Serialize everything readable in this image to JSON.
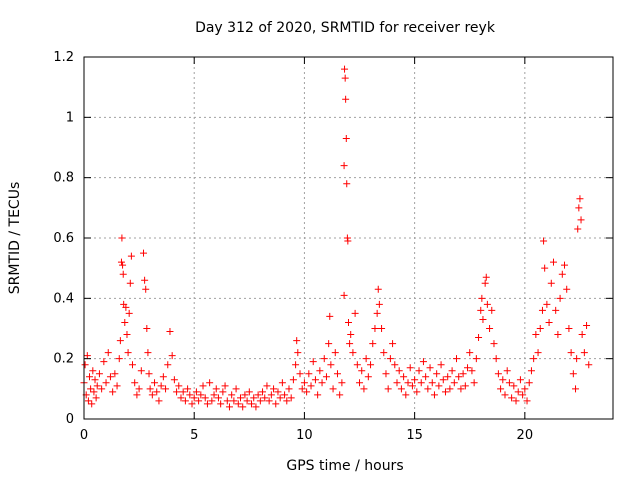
{
  "chart_data": {
    "type": "scatter",
    "title": "Day 312 of 2020, SRMTID for receiver reyk",
    "xlabel": "GPS time / hours",
    "ylabel": "SRMTID / TECUs",
    "xlim": [
      0,
      24
    ],
    "ylim": [
      0,
      1.2
    ],
    "xticks": [
      0,
      5,
      10,
      15,
      20
    ],
    "xtick_labels": [
      "0",
      "5",
      "10",
      "15",
      "20"
    ],
    "yticks": [
      0,
      0.2,
      0.4,
      0.6,
      0.8,
      1.0,
      1.2
    ],
    "ytick_labels": [
      "0",
      "0.2",
      "0.4",
      "0.6",
      "0.8",
      "1",
      "1.2"
    ],
    "grid": true,
    "marker": "+",
    "color": "#ff0000",
    "series": [
      {
        "name": "SRMTID",
        "points": [
          [
            0.0,
            0.12
          ],
          [
            0.05,
            0.18
          ],
          [
            0.1,
            0.08
          ],
          [
            0.15,
            0.21
          ],
          [
            0.2,
            0.06
          ],
          [
            0.25,
            0.14
          ],
          [
            0.3,
            0.1
          ],
          [
            0.35,
            0.05
          ],
          [
            0.4,
            0.16
          ],
          [
            0.45,
            0.09
          ],
          [
            0.5,
            0.13
          ],
          [
            0.55,
            0.07
          ],
          [
            0.6,
            0.11
          ],
          [
            0.7,
            0.15
          ],
          [
            0.8,
            0.1
          ],
          [
            0.9,
            0.19
          ],
          [
            1.0,
            0.12
          ],
          [
            1.1,
            0.22
          ],
          [
            1.2,
            0.14
          ],
          [
            1.3,
            0.09
          ],
          [
            1.4,
            0.15
          ],
          [
            1.5,
            0.11
          ],
          [
            1.6,
            0.2
          ],
          [
            1.65,
            0.26
          ],
          [
            1.7,
            0.52
          ],
          [
            1.72,
            0.6
          ],
          [
            1.75,
            0.51
          ],
          [
            1.78,
            0.48
          ],
          [
            1.8,
            0.38
          ],
          [
            1.85,
            0.32
          ],
          [
            1.9,
            0.37
          ],
          [
            1.95,
            0.28
          ],
          [
            2.0,
            0.22
          ],
          [
            2.05,
            0.35
          ],
          [
            2.1,
            0.45
          ],
          [
            2.15,
            0.54
          ],
          [
            2.2,
            0.18
          ],
          [
            2.3,
            0.12
          ],
          [
            2.4,
            0.08
          ],
          [
            2.5,
            0.1
          ],
          [
            2.6,
            0.16
          ],
          [
            2.7,
            0.55
          ],
          [
            2.75,
            0.46
          ],
          [
            2.8,
            0.43
          ],
          [
            2.85,
            0.3
          ],
          [
            2.9,
            0.22
          ],
          [
            2.95,
            0.15
          ],
          [
            3.0,
            0.1
          ],
          [
            3.1,
            0.08
          ],
          [
            3.2,
            0.12
          ],
          [
            3.3,
            0.09
          ],
          [
            3.4,
            0.06
          ],
          [
            3.5,
            0.11
          ],
          [
            3.6,
            0.14
          ],
          [
            3.7,
            0.1
          ],
          [
            3.8,
            0.18
          ],
          [
            3.9,
            0.29
          ],
          [
            4.0,
            0.21
          ],
          [
            4.1,
            0.13
          ],
          [
            4.2,
            0.09
          ],
          [
            4.3,
            0.11
          ],
          [
            4.4,
            0.07
          ],
          [
            4.5,
            0.09
          ],
          [
            4.6,
            0.06
          ],
          [
            4.7,
            0.1
          ],
          [
            4.8,
            0.08
          ],
          [
            4.9,
            0.05
          ],
          [
            5.0,
            0.07
          ],
          [
            5.1,
            0.09
          ],
          [
            5.2,
            0.06
          ],
          [
            5.3,
            0.08
          ],
          [
            5.4,
            0.11
          ],
          [
            5.5,
            0.07
          ],
          [
            5.6,
            0.05
          ],
          [
            5.7,
            0.12
          ],
          [
            5.8,
            0.06
          ],
          [
            5.9,
            0.08
          ],
          [
            6.0,
            0.1
          ],
          [
            6.1,
            0.07
          ],
          [
            6.2,
            0.05
          ],
          [
            6.3,
            0.09
          ],
          [
            6.4,
            0.11
          ],
          [
            6.5,
            0.06
          ],
          [
            6.6,
            0.04
          ],
          [
            6.7,
            0.08
          ],
          [
            6.8,
            0.06
          ],
          [
            6.9,
            0.1
          ],
          [
            7.0,
            0.05
          ],
          [
            7.1,
            0.07
          ],
          [
            7.2,
            0.04
          ],
          [
            7.3,
            0.08
          ],
          [
            7.4,
            0.06
          ],
          [
            7.5,
            0.09
          ],
          [
            7.6,
            0.05
          ],
          [
            7.7,
            0.07
          ],
          [
            7.8,
            0.04
          ],
          [
            7.9,
            0.08
          ],
          [
            8.0,
            0.06
          ],
          [
            8.1,
            0.09
          ],
          [
            8.2,
            0.07
          ],
          [
            8.3,
            0.11
          ],
          [
            8.4,
            0.06
          ],
          [
            8.5,
            0.08
          ],
          [
            8.6,
            0.1
          ],
          [
            8.7,
            0.05
          ],
          [
            8.8,
            0.09
          ],
          [
            8.9,
            0.07
          ],
          [
            9.0,
            0.12
          ],
          [
            9.1,
            0.08
          ],
          [
            9.2,
            0.06
          ],
          [
            9.3,
            0.1
          ],
          [
            9.4,
            0.07
          ],
          [
            9.5,
            0.13
          ],
          [
            9.6,
            0.18
          ],
          [
            9.65,
            0.26
          ],
          [
            9.7,
            0.22
          ],
          [
            9.8,
            0.15
          ],
          [
            9.9,
            0.1
          ],
          [
            10.0,
            0.12
          ],
          [
            10.1,
            0.09
          ],
          [
            10.2,
            0.15
          ],
          [
            10.3,
            0.11
          ],
          [
            10.4,
            0.19
          ],
          [
            10.5,
            0.13
          ],
          [
            10.6,
            0.08
          ],
          [
            10.7,
            0.16
          ],
          [
            10.8,
            0.12
          ],
          [
            10.9,
            0.2
          ],
          [
            11.0,
            0.14
          ],
          [
            11.1,
            0.25
          ],
          [
            11.15,
            0.34
          ],
          [
            11.2,
            0.18
          ],
          [
            11.3,
            0.1
          ],
          [
            11.4,
            0.22
          ],
          [
            11.5,
            0.15
          ],
          [
            11.6,
            0.08
          ],
          [
            11.7,
            0.12
          ],
          [
            11.8,
            0.84
          ],
          [
            11.82,
            1.16
          ],
          [
            11.85,
            1.13
          ],
          [
            11.87,
            1.06
          ],
          [
            11.9,
            0.93
          ],
          [
            11.92,
            0.78
          ],
          [
            11.95,
            0.6
          ],
          [
            11.97,
            0.59
          ],
          [
            11.8,
            0.41
          ],
          [
            12.0,
            0.32
          ],
          [
            12.05,
            0.25
          ],
          [
            12.1,
            0.28
          ],
          [
            12.2,
            0.22
          ],
          [
            12.3,
            0.35
          ],
          [
            12.4,
            0.18
          ],
          [
            12.5,
            0.12
          ],
          [
            12.6,
            0.16
          ],
          [
            12.7,
            0.1
          ],
          [
            12.8,
            0.2
          ],
          [
            12.9,
            0.14
          ],
          [
            13.0,
            0.18
          ],
          [
            13.1,
            0.25
          ],
          [
            13.2,
            0.3
          ],
          [
            13.3,
            0.35
          ],
          [
            13.35,
            0.43
          ],
          [
            13.4,
            0.38
          ],
          [
            13.5,
            0.3
          ],
          [
            13.6,
            0.22
          ],
          [
            13.7,
            0.15
          ],
          [
            13.8,
            0.1
          ],
          [
            13.9,
            0.2
          ],
          [
            14.0,
            0.25
          ],
          [
            14.1,
            0.18
          ],
          [
            14.2,
            0.12
          ],
          [
            14.3,
            0.16
          ],
          [
            14.4,
            0.1
          ],
          [
            14.5,
            0.14
          ],
          [
            14.6,
            0.08
          ],
          [
            14.7,
            0.12
          ],
          [
            14.8,
            0.17
          ],
          [
            14.9,
            0.11
          ],
          [
            15.0,
            0.13
          ],
          [
            15.1,
            0.09
          ],
          [
            15.2,
            0.16
          ],
          [
            15.3,
            0.12
          ],
          [
            15.4,
            0.19
          ],
          [
            15.5,
            0.14
          ],
          [
            15.6,
            0.1
          ],
          [
            15.7,
            0.17
          ],
          [
            15.8,
            0.12
          ],
          [
            15.9,
            0.08
          ],
          [
            16.0,
            0.15
          ],
          [
            16.1,
            0.11
          ],
          [
            16.2,
            0.18
          ],
          [
            16.3,
            0.13
          ],
          [
            16.4,
            0.09
          ],
          [
            16.5,
            0.14
          ],
          [
            16.6,
            0.1
          ],
          [
            16.7,
            0.16
          ],
          [
            16.8,
            0.12
          ],
          [
            16.9,
            0.2
          ],
          [
            17.0,
            0.14
          ],
          [
            17.1,
            0.1
          ],
          [
            17.2,
            0.15
          ],
          [
            17.3,
            0.11
          ],
          [
            17.4,
            0.17
          ],
          [
            17.5,
            0.22
          ],
          [
            17.6,
            0.16
          ],
          [
            17.7,
            0.12
          ],
          [
            17.8,
            0.2
          ],
          [
            17.9,
            0.27
          ],
          [
            18.0,
            0.36
          ],
          [
            18.05,
            0.4
          ],
          [
            18.1,
            0.33
          ],
          [
            18.2,
            0.45
          ],
          [
            18.25,
            0.47
          ],
          [
            18.3,
            0.38
          ],
          [
            18.4,
            0.3
          ],
          [
            18.5,
            0.36
          ],
          [
            18.6,
            0.25
          ],
          [
            18.7,
            0.2
          ],
          [
            18.8,
            0.15
          ],
          [
            18.9,
            0.1
          ],
          [
            19.0,
            0.13
          ],
          [
            19.1,
            0.08
          ],
          [
            19.2,
            0.16
          ],
          [
            19.3,
            0.12
          ],
          [
            19.4,
            0.07
          ],
          [
            19.5,
            0.11
          ],
          [
            19.6,
            0.06
          ],
          [
            19.7,
            0.09
          ],
          [
            19.8,
            0.13
          ],
          [
            19.9,
            0.08
          ],
          [
            20.0,
            0.1
          ],
          [
            20.1,
            0.06
          ],
          [
            20.2,
            0.12
          ],
          [
            20.3,
            0.16
          ],
          [
            20.4,
            0.2
          ],
          [
            20.5,
            0.28
          ],
          [
            20.6,
            0.22
          ],
          [
            20.7,
            0.3
          ],
          [
            20.8,
            0.36
          ],
          [
            20.85,
            0.59
          ],
          [
            20.9,
            0.5
          ],
          [
            21.0,
            0.38
          ],
          [
            21.1,
            0.32
          ],
          [
            21.2,
            0.45
          ],
          [
            21.3,
            0.52
          ],
          [
            21.4,
            0.36
          ],
          [
            21.5,
            0.28
          ],
          [
            21.6,
            0.4
          ],
          [
            21.7,
            0.48
          ],
          [
            21.8,
            0.51
          ],
          [
            21.9,
            0.43
          ],
          [
            22.0,
            0.3
          ],
          [
            22.1,
            0.22
          ],
          [
            22.2,
            0.15
          ],
          [
            22.3,
            0.1
          ],
          [
            22.35,
            0.2
          ],
          [
            22.4,
            0.63
          ],
          [
            22.45,
            0.7
          ],
          [
            22.5,
            0.73
          ],
          [
            22.55,
            0.66
          ],
          [
            22.6,
            0.28
          ],
          [
            22.7,
            0.22
          ],
          [
            22.8,
            0.31
          ],
          [
            22.9,
            0.18
          ]
        ]
      }
    ]
  }
}
